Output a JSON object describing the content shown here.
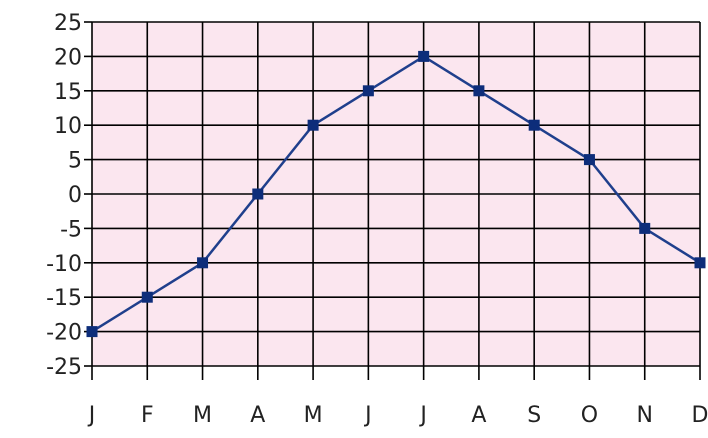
{
  "chart_data": {
    "type": "line",
    "title": "",
    "xlabel": "",
    "ylabel": "",
    "categories": [
      "J",
      "F",
      "M",
      "A",
      "M",
      "J",
      "J",
      "A",
      "S",
      "O",
      "N",
      "D"
    ],
    "series": [
      {
        "values": [
          -20,
          -15,
          -10,
          0,
          10,
          15,
          20,
          15,
          10,
          5,
          -5,
          -10
        ]
      }
    ],
    "y_ticks": [
      "25",
      "20",
      "15",
      "10",
      "5",
      "0",
      "-5",
      "-10",
      "-15",
      "-20",
      "-25"
    ],
    "ylim": [
      -25,
      25
    ],
    "y_step": 5,
    "grid": true,
    "plot_background": "#fbe6ef",
    "grid_color": "#000000",
    "line_color": "#1f3f8c",
    "marker_color": "#0d2d7a",
    "marker": "square"
  }
}
